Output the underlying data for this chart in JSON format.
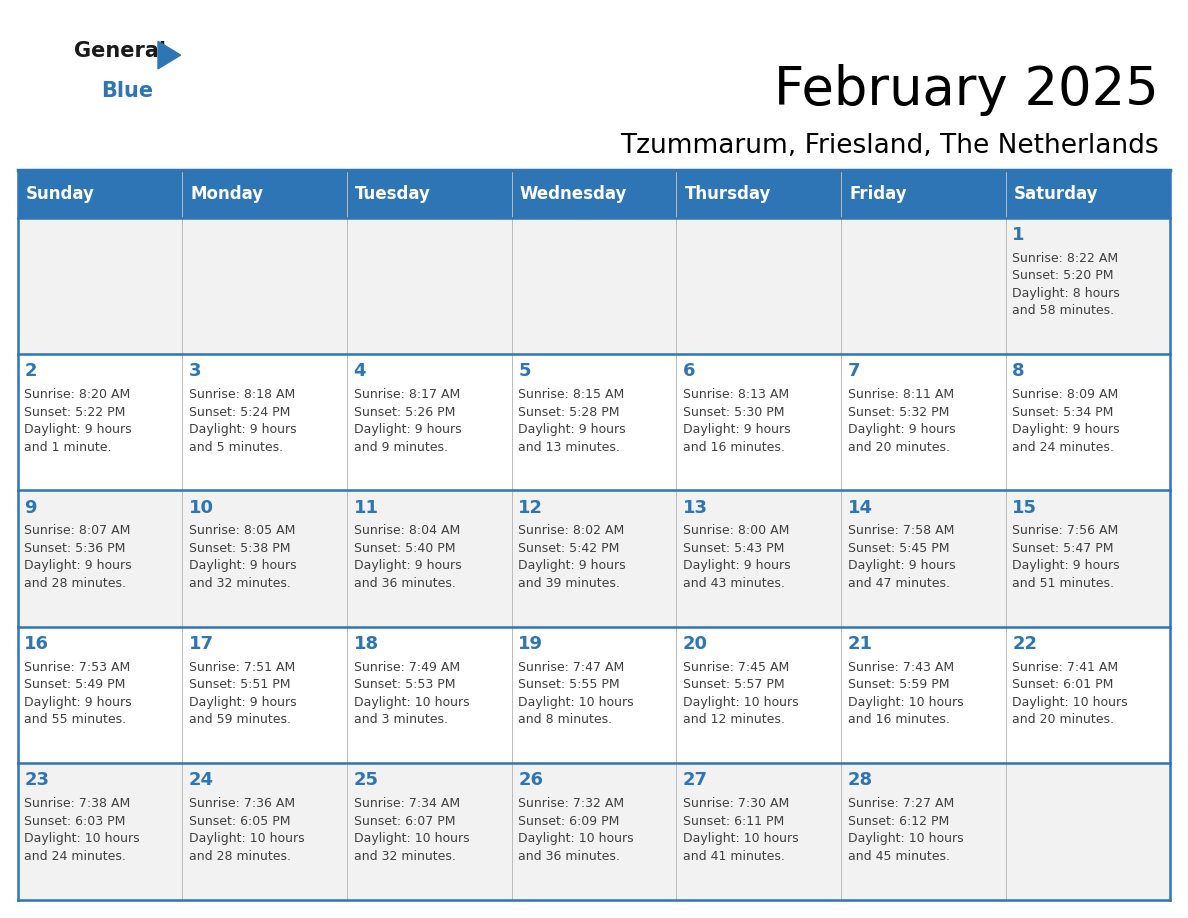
{
  "title": "February 2025",
  "subtitle": "Tzummarum, Friesland, The Netherlands",
  "days_of_week": [
    "Sunday",
    "Monday",
    "Tuesday",
    "Wednesday",
    "Thursday",
    "Friday",
    "Saturday"
  ],
  "header_bg": "#2e75b6",
  "header_text": "#ffffff",
  "row_bg_odd": "#f2f2f2",
  "row_bg_even": "#ffffff",
  "border_color": "#2e75b6",
  "day_number_color": "#2e75b6",
  "cell_text_color": "#404040",
  "calendar_data": [
    [
      null,
      null,
      null,
      null,
      null,
      null,
      {
        "day": "1",
        "sunrise": "8:22 AM",
        "sunset": "5:20 PM",
        "daylight": "8 hours\nand 58 minutes."
      }
    ],
    [
      {
        "day": "2",
        "sunrise": "8:20 AM",
        "sunset": "5:22 PM",
        "daylight": "9 hours\nand 1 minute."
      },
      {
        "day": "3",
        "sunrise": "8:18 AM",
        "sunset": "5:24 PM",
        "daylight": "9 hours\nand 5 minutes."
      },
      {
        "day": "4",
        "sunrise": "8:17 AM",
        "sunset": "5:26 PM",
        "daylight": "9 hours\nand 9 minutes."
      },
      {
        "day": "5",
        "sunrise": "8:15 AM",
        "sunset": "5:28 PM",
        "daylight": "9 hours\nand 13 minutes."
      },
      {
        "day": "6",
        "sunrise": "8:13 AM",
        "sunset": "5:30 PM",
        "daylight": "9 hours\nand 16 minutes."
      },
      {
        "day": "7",
        "sunrise": "8:11 AM",
        "sunset": "5:32 PM",
        "daylight": "9 hours\nand 20 minutes."
      },
      {
        "day": "8",
        "sunrise": "8:09 AM",
        "sunset": "5:34 PM",
        "daylight": "9 hours\nand 24 minutes."
      }
    ],
    [
      {
        "day": "9",
        "sunrise": "8:07 AM",
        "sunset": "5:36 PM",
        "daylight": "9 hours\nand 28 minutes."
      },
      {
        "day": "10",
        "sunrise": "8:05 AM",
        "sunset": "5:38 PM",
        "daylight": "9 hours\nand 32 minutes."
      },
      {
        "day": "11",
        "sunrise": "8:04 AM",
        "sunset": "5:40 PM",
        "daylight": "9 hours\nand 36 minutes."
      },
      {
        "day": "12",
        "sunrise": "8:02 AM",
        "sunset": "5:42 PM",
        "daylight": "9 hours\nand 39 minutes."
      },
      {
        "day": "13",
        "sunrise": "8:00 AM",
        "sunset": "5:43 PM",
        "daylight": "9 hours\nand 43 minutes."
      },
      {
        "day": "14",
        "sunrise": "7:58 AM",
        "sunset": "5:45 PM",
        "daylight": "9 hours\nand 47 minutes."
      },
      {
        "day": "15",
        "sunrise": "7:56 AM",
        "sunset": "5:47 PM",
        "daylight": "9 hours\nand 51 minutes."
      }
    ],
    [
      {
        "day": "16",
        "sunrise": "7:53 AM",
        "sunset": "5:49 PM",
        "daylight": "9 hours\nand 55 minutes."
      },
      {
        "day": "17",
        "sunrise": "7:51 AM",
        "sunset": "5:51 PM",
        "daylight": "9 hours\nand 59 minutes."
      },
      {
        "day": "18",
        "sunrise": "7:49 AM",
        "sunset": "5:53 PM",
        "daylight": "10 hours\nand 3 minutes."
      },
      {
        "day": "19",
        "sunrise": "7:47 AM",
        "sunset": "5:55 PM",
        "daylight": "10 hours\nand 8 minutes."
      },
      {
        "day": "20",
        "sunrise": "7:45 AM",
        "sunset": "5:57 PM",
        "daylight": "10 hours\nand 12 minutes."
      },
      {
        "day": "21",
        "sunrise": "7:43 AM",
        "sunset": "5:59 PM",
        "daylight": "10 hours\nand 16 minutes."
      },
      {
        "day": "22",
        "sunrise": "7:41 AM",
        "sunset": "6:01 PM",
        "daylight": "10 hours\nand 20 minutes."
      }
    ],
    [
      {
        "day": "23",
        "sunrise": "7:38 AM",
        "sunset": "6:03 PM",
        "daylight": "10 hours\nand 24 minutes."
      },
      {
        "day": "24",
        "sunrise": "7:36 AM",
        "sunset": "6:05 PM",
        "daylight": "10 hours\nand 28 minutes."
      },
      {
        "day": "25",
        "sunrise": "7:34 AM",
        "sunset": "6:07 PM",
        "daylight": "10 hours\nand 32 minutes."
      },
      {
        "day": "26",
        "sunrise": "7:32 AM",
        "sunset": "6:09 PM",
        "daylight": "10 hours\nand 36 minutes."
      },
      {
        "day": "27",
        "sunrise": "7:30 AM",
        "sunset": "6:11 PM",
        "daylight": "10 hours\nand 41 minutes."
      },
      {
        "day": "28",
        "sunrise": "7:27 AM",
        "sunset": "6:12 PM",
        "daylight": "10 hours\nand 45 minutes."
      },
      null
    ]
  ]
}
